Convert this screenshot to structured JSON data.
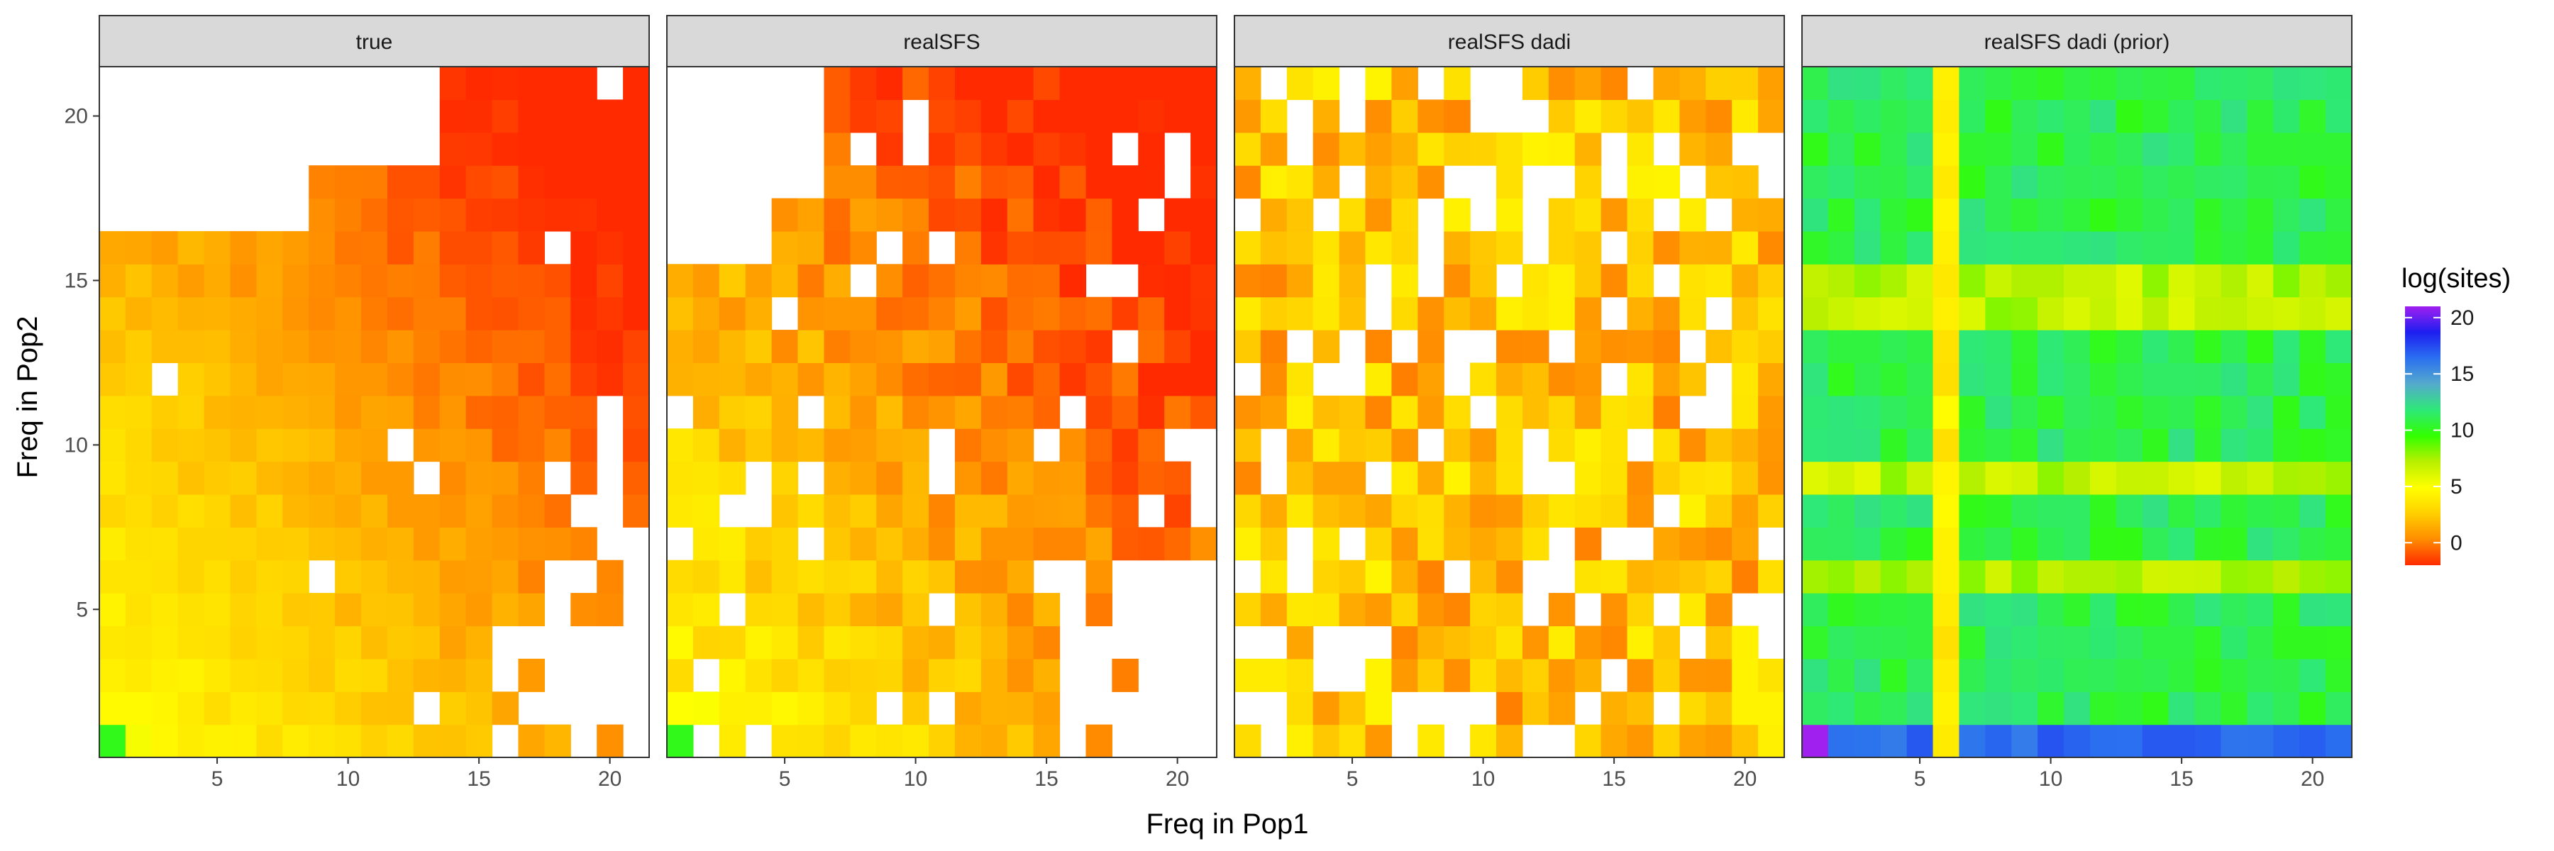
{
  "chart_data": {
    "type": "heatmap",
    "facets": [
      "true",
      "realSFS",
      "realSFS dadi",
      "realSFS dadi (prior)"
    ],
    "xlabel": "Freq in Pop1",
    "ylabel": "Freq in Pop2",
    "xlim": [
      1,
      21
    ],
    "ylim": [
      1,
      21
    ],
    "x_ticks": [
      "5",
      "10",
      "15",
      "20"
    ],
    "y_ticks": [
      "5",
      "10",
      "15",
      "20"
    ],
    "legend": {
      "title": "log(sites)",
      "position": "right",
      "range": [
        -2,
        21
      ],
      "ticks": [
        "0",
        "5",
        "10",
        "15",
        "20"
      ],
      "colors": [
        "#FF2A00",
        "#FF8C00",
        "#FFD000",
        "#FFFF00",
        "#B8F000",
        "#32FF00",
        "#2EE878",
        "#55AACC",
        "#2A70F0",
        "#1E1EF0",
        "#A020F0"
      ]
    },
    "grid": false,
    "colors": {
      "missing": "#FFFFFF",
      "strip_bg": "#D9D9D9",
      "panel_border": "#333333"
    }
  }
}
